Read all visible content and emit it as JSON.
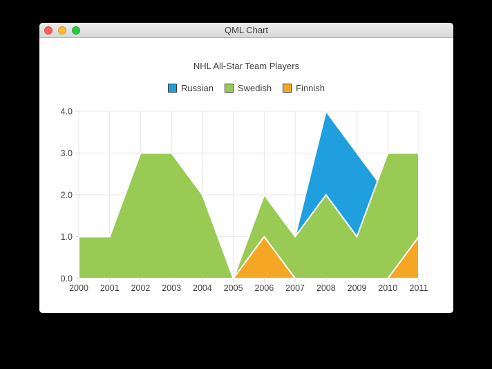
{
  "window": {
    "title": "QML Chart",
    "traffic_lights": [
      {
        "name": "close",
        "color": "#ff5f57"
      },
      {
        "name": "minimize",
        "color": "#febc2e"
      },
      {
        "name": "zoom",
        "color": "#28c840"
      }
    ]
  },
  "chart": {
    "title": "NHL All-Star Team Players"
  },
  "chart_data": {
    "type": "area",
    "title": "NHL All-Star Team Players",
    "x_labels": [
      "2000",
      "2001",
      "2002",
      "2003",
      "2004",
      "2005",
      "2006",
      "2007",
      "2008",
      "2009",
      "2010",
      "2011"
    ],
    "y_tick_labels": [
      "0.0",
      "1.0",
      "2.0",
      "3.0",
      "4.0"
    ],
    "xlim": [
      2000,
      2011
    ],
    "ylim": [
      0,
      4
    ],
    "grid": true,
    "legend_position": "top",
    "series": [
      {
        "name": "Russian",
        "color": "#209fdf",
        "upper": [
          1,
          1,
          1,
          1,
          1,
          0,
          1,
          1,
          4,
          3,
          2,
          1
        ],
        "lower": [
          0,
          0,
          0,
          0,
          0,
          0,
          0,
          1,
          2,
          1,
          1,
          1
        ]
      },
      {
        "name": "Swedish",
        "color": "#99ca53",
        "upper": [
          1,
          1,
          3,
          3,
          2,
          0,
          2,
          1,
          2,
          1,
          3,
          3
        ],
        "lower": [
          0,
          0,
          0,
          0,
          0,
          0,
          0,
          0,
          0,
          0,
          0,
          0
        ]
      },
      {
        "name": "Finnish",
        "color": "#f6a625",
        "upper": [
          0,
          0,
          0,
          0,
          0,
          0,
          1,
          0,
          0,
          0,
          0,
          1
        ],
        "lower": [
          0,
          0,
          0,
          0,
          0,
          0,
          0,
          0,
          0,
          0,
          0,
          0
        ]
      }
    ]
  },
  "style": {
    "grid_color": "#e7e7e7",
    "tick_color": "#d6d6d6",
    "axis_label_color": "#404040",
    "area_border_color": "#ffffff",
    "legend_marker_border": "#404040"
  }
}
